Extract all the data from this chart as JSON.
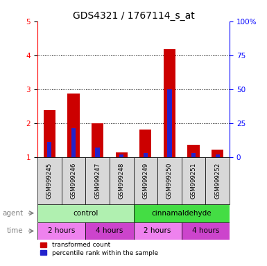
{
  "title": "GDS4321 / 1767114_s_at",
  "samples": [
    "GSM999245",
    "GSM999246",
    "GSM999247",
    "GSM999248",
    "GSM999249",
    "GSM999250",
    "GSM999251",
    "GSM999252"
  ],
  "red_values": [
    2.38,
    2.87,
    2.0,
    1.15,
    1.82,
    4.18,
    1.38,
    1.22
  ],
  "blue_values": [
    1.45,
    1.85,
    1.3,
    1.08,
    1.12,
    3.0,
    1.12,
    1.08
  ],
  "ylim_left": [
    1,
    5
  ],
  "ylim_right": [
    0,
    100
  ],
  "yticks_left": [
    1,
    2,
    3,
    4,
    5
  ],
  "yticks_right": [
    0,
    25,
    50,
    75,
    100
  ],
  "ytick_labels_right": [
    "0",
    "25",
    "50",
    "75",
    "100%"
  ],
  "bar_color_red": "#cc0000",
  "bar_color_blue": "#2222cc",
  "agent_control": "control",
  "agent_cinnamaldehyde": "cinnamaldehyde",
  "time_labels": [
    "2 hours",
    "4 hours",
    "2 hours",
    "4 hours"
  ],
  "agent_color_control": "#b0f0b0",
  "agent_color_cinn": "#44dd44",
  "time_color_2h": "#ee82ee",
  "time_color_4h": "#cc44cc",
  "label_agent": "agent",
  "label_time": "time",
  "legend_red": "transformed count",
  "legend_blue": "percentile rank within the sample",
  "sample_bg": "#d8d8d8",
  "title_fontsize": 10,
  "tick_fontsize": 7.5,
  "bar_fontsize": 8
}
